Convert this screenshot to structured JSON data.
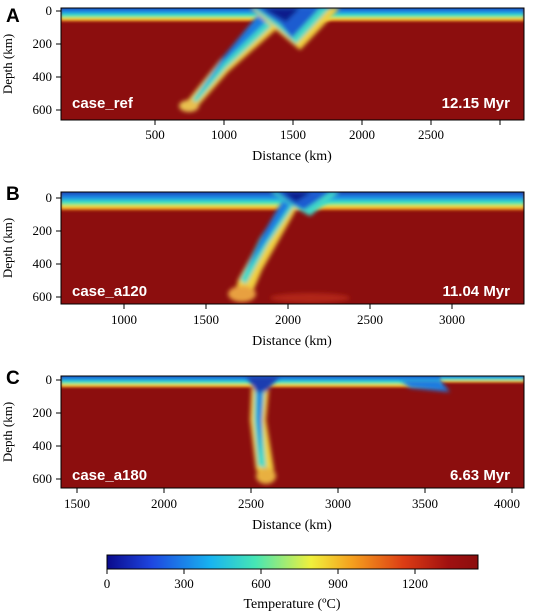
{
  "panels": [
    {
      "letter": "A",
      "case_label": "case_ref",
      "time_label": "12.15 Myr",
      "x_axis_title": "Distance (km)",
      "y_axis_title": "Depth (km)",
      "x_ticks": [
        "500",
        "1000",
        "1500",
        "2000",
        "2500"
      ],
      "y_ticks": [
        "0",
        "200",
        "400",
        "600"
      ]
    },
    {
      "letter": "B",
      "case_label": "case_a120",
      "time_label": "11.04 Myr",
      "x_axis_title": "Distance (km)",
      "y_axis_title": "Depth (km)",
      "x_ticks": [
        "1000",
        "1500",
        "2000",
        "2500",
        "3000"
      ],
      "y_ticks": [
        "0",
        "200",
        "400",
        "600"
      ]
    },
    {
      "letter": "C",
      "case_label": "case_a180",
      "time_label": "6.63 Myr",
      "x_axis_title": "Distance (km)",
      "y_axis_title": "Depth (km)",
      "x_ticks": [
        "1500",
        "2000",
        "2500",
        "3000",
        "3500",
        "4000"
      ],
      "y_ticks": [
        "0",
        "200",
        "400",
        "600"
      ]
    }
  ],
  "colorbar": {
    "title": "Temperature (ºC)",
    "ticks": [
      "0",
      "300",
      "600",
      "900",
      "1200"
    ],
    "colors": [
      "#0a0a8c",
      "#1e46e0",
      "#18b4f0",
      "#46e6b4",
      "#f0f03c",
      "#f5a01e",
      "#dc3c14",
      "#a01010",
      "#8c0e0e"
    ]
  }
}
